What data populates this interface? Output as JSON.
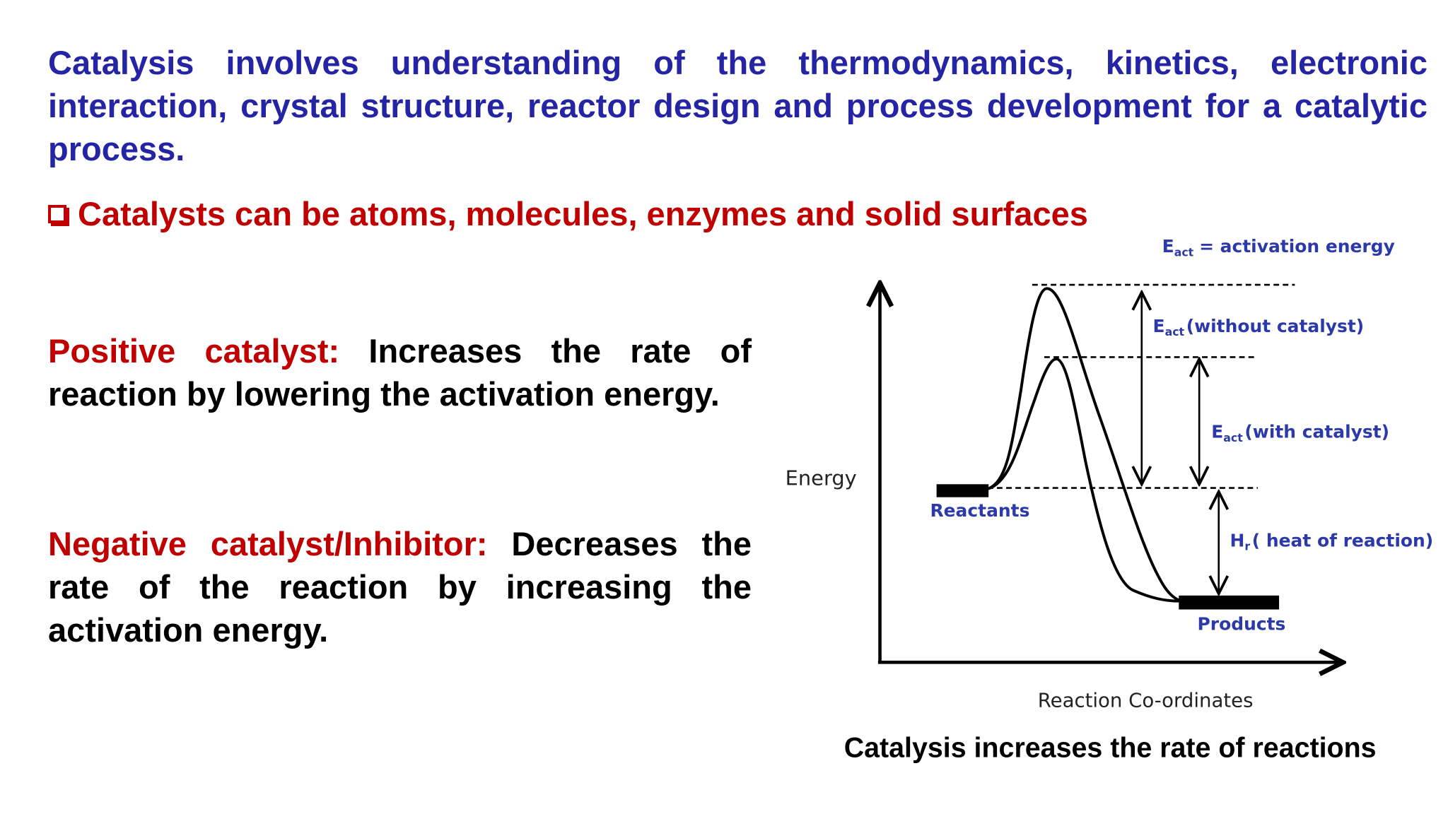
{
  "intro": "Catalysis involves understanding of the thermodynamics, kinetics, electronic interaction, crystal structure, reactor design and process development for a catalytic process.",
  "bullet": "Catalysts can be atoms, molecules, enzymes and solid surfaces",
  "positive": {
    "label": "Positive catalyst:",
    "text": "Increases the rate of reaction by lowering the activation energy."
  },
  "negative": {
    "label": "Negative catalyst/Inhibitor:",
    "text": "Decreases the rate of the reaction by increasing the activation energy."
  },
  "diagram": {
    "legend": {
      "symbol": "E",
      "subscript": "act",
      "text": "= activation energy"
    },
    "without": {
      "symbol": "E",
      "subscript": "act",
      "text": "(without catalyst)"
    },
    "with": {
      "symbol": "E",
      "subscript": "act",
      "text": "(with catalyst)"
    },
    "heat": {
      "symbol": "H",
      "subscript": "r",
      "text": "( heat of reaction)"
    },
    "y_label": "Energy",
    "x_label": "Reaction Co-ordinates",
    "reactants": "Reactants",
    "products": "Products"
  },
  "caption": "Catalysis increases the rate of reactions"
}
